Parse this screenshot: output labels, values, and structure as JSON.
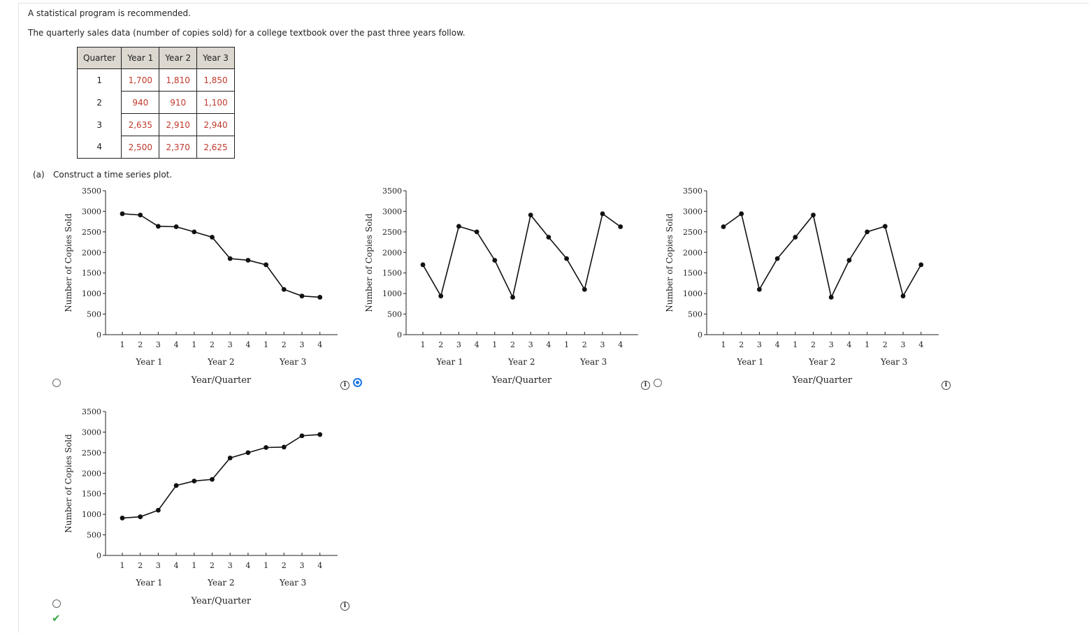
{
  "intro": "A statistical program is recommended.",
  "description": "The quarterly sales data (number of copies sold) for a college textbook over the past three years follow.",
  "table": {
    "headers": [
      "Quarter",
      "Year 1",
      "Year 2",
      "Year 3"
    ],
    "rows": [
      [
        "1",
        "1,700",
        "1,810",
        "1,850"
      ],
      [
        "2",
        "940",
        "910",
        "1,100"
      ],
      [
        "3",
        "2,635",
        "2,910",
        "2,940"
      ],
      [
        "4",
        "2,500",
        "2,370",
        "2,625"
      ]
    ]
  },
  "part_a": {
    "label": "(a)",
    "prompt": "Construct a time series plot."
  },
  "answer_state": {
    "selected_option": 2,
    "correct_option": 4
  },
  "colors": {
    "selected": "#1a73e8",
    "correct": "#3aa845",
    "value_text": "#c0392b",
    "header_bg": "#dcd7cf"
  },
  "icons": {
    "info": "info-icon",
    "correct": "checkmark-icon"
  },
  "chart_data": [
    {
      "type": "line",
      "option": 1,
      "ylabel": "Number of Copies Sold",
      "xlabel": "Year/Quarter",
      "ylim": [
        0,
        3500
      ],
      "yticks": [
        "0",
        "500",
        "1000",
        "1500",
        "2000",
        "2500",
        "3000",
        "3500"
      ],
      "quarter_ticks": [
        "1",
        "2",
        "3",
        "4",
        "1",
        "2",
        "3",
        "4",
        "1",
        "2",
        "3",
        "4"
      ],
      "year_labels": [
        "Year 1",
        "Year 2",
        "Year 3"
      ],
      "values": [
        2940,
        2910,
        2635,
        2625,
        2500,
        2370,
        1850,
        1810,
        1700,
        1100,
        940,
        910
      ]
    },
    {
      "type": "line",
      "option": 2,
      "ylabel": "Number of Copies Sold",
      "xlabel": "Year/Quarter",
      "ylim": [
        0,
        3500
      ],
      "yticks": [
        "0",
        "500",
        "1000",
        "1500",
        "2000",
        "2500",
        "3000",
        "3500"
      ],
      "quarter_ticks": [
        "1",
        "2",
        "3",
        "4",
        "1",
        "2",
        "3",
        "4",
        "1",
        "2",
        "3",
        "4"
      ],
      "year_labels": [
        "Year 1",
        "Year 2",
        "Year 3"
      ],
      "values": [
        1700,
        940,
        2635,
        2500,
        1810,
        910,
        2910,
        2370,
        1850,
        1100,
        2940,
        2625
      ]
    },
    {
      "type": "line",
      "option": 3,
      "ylabel": "Number of Copies Sold",
      "xlabel": "Year/Quarter",
      "ylim": [
        0,
        3500
      ],
      "yticks": [
        "0",
        "500",
        "1000",
        "1500",
        "2000",
        "2500",
        "3000",
        "3500"
      ],
      "quarter_ticks": [
        "1",
        "2",
        "3",
        "4",
        "1",
        "2",
        "3",
        "4",
        "1",
        "2",
        "3",
        "4"
      ],
      "year_labels": [
        "Year 1",
        "Year 2",
        "Year 3"
      ],
      "values": [
        2625,
        2940,
        1100,
        1850,
        2370,
        2910,
        910,
        1810,
        2500,
        2635,
        940,
        1700
      ]
    },
    {
      "type": "line",
      "option": 4,
      "ylabel": "Number of Copies Sold",
      "xlabel": "Year/Quarter",
      "ylim": [
        0,
        3500
      ],
      "yticks": [
        "0",
        "500",
        "1000",
        "1500",
        "2000",
        "2500",
        "3000",
        "3500"
      ],
      "quarter_ticks": [
        "1",
        "2",
        "3",
        "4",
        "1",
        "2",
        "3",
        "4",
        "1",
        "2",
        "3",
        "4"
      ],
      "year_labels": [
        "Year 1",
        "Year 2",
        "Year 3"
      ],
      "values": [
        910,
        940,
        1100,
        1700,
        1810,
        1850,
        2370,
        2500,
        2625,
        2635,
        2910,
        2940
      ]
    }
  ]
}
